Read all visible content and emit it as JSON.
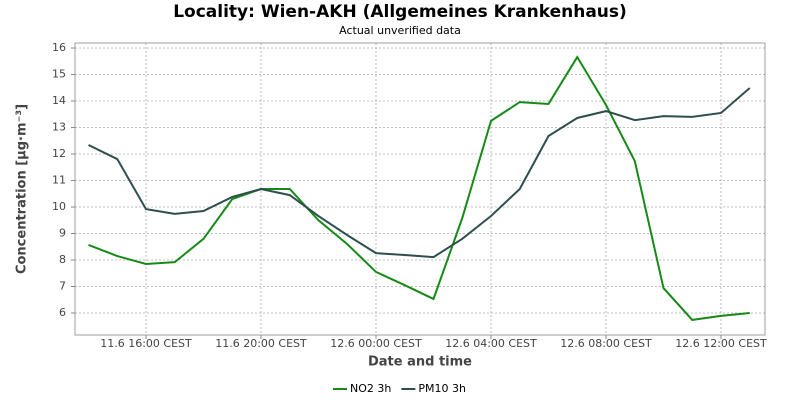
{
  "chart_data": {
    "type": "line",
    "title": "Locality: Wien-AKH (Allgemeines Krankenhaus)",
    "subtitle": "Actual unverified data",
    "x_label": "Date and time",
    "y_label": "Concentration [µg·m⁻³]",
    "categories": [
      null,
      null,
      "11.6 16:00 CEST",
      null,
      null,
      null,
      "11.6 20:00 CEST",
      null,
      null,
      null,
      "12.6 00:00 CEST",
      null,
      null,
      null,
      "12.6 04:00 CEST",
      null,
      null,
      null,
      "12.6 08:00 CEST",
      null,
      null,
      null,
      "12.6 12:00 CEST",
      null
    ],
    "series": [
      {
        "name": "NO2 3h",
        "color": "#168a16",
        "values": [
          8.57,
          8.15,
          7.85,
          7.92,
          8.8,
          10.3,
          10.68,
          10.68,
          9.5,
          8.6,
          7.55,
          7.05,
          6.53,
          9.58,
          13.25,
          13.96,
          13.89,
          15.66,
          13.85,
          11.74,
          6.94,
          5.74,
          5.89,
          6.0
        ]
      },
      {
        "name": "PM10 3h",
        "color": "#2f4f4f",
        "values": [
          12.34,
          11.81,
          9.92,
          9.74,
          9.85,
          10.38,
          10.68,
          10.45,
          9.66,
          8.94,
          8.26,
          8.19,
          8.11,
          8.8,
          9.66,
          10.68,
          12.68,
          13.36,
          13.62,
          13.28,
          13.43,
          13.4,
          13.55,
          14.49
        ]
      }
    ],
    "ylim": [
      5.17,
      16.19
    ],
    "yticks": [
      6,
      7,
      8,
      9,
      10,
      11,
      12,
      13,
      14,
      15,
      16
    ],
    "grid": true,
    "legend": "bottom"
  }
}
